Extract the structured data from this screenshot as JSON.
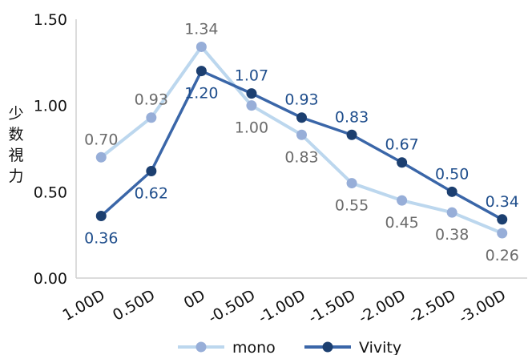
{
  "chart_data": {
    "type": "line",
    "categories": [
      "1.00D",
      "0.50D",
      "0D",
      "-0.50D",
      "-1.00D",
      "-1.50D",
      "-2.00D",
      "-2.50D",
      "-3.00D"
    ],
    "series": [
      {
        "name": "mono",
        "values": [
          0.7,
          0.93,
          1.34,
          1.0,
          0.83,
          0.55,
          0.45,
          0.38,
          0.26
        ],
        "labels": [
          "0.70",
          "0.93",
          "1.34",
          "1.00",
          "0.83",
          "0.55",
          "0.45",
          "0.38",
          "0.26"
        ],
        "line_color": "#bcd7ee",
        "marker_color": "#97aed8",
        "label_color": "#6b6b6b"
      },
      {
        "name": "Vivity",
        "values": [
          0.36,
          0.62,
          1.2,
          1.07,
          0.93,
          0.83,
          0.67,
          0.5,
          0.34
        ],
        "labels": [
          "0.36",
          "0.62",
          "1.20",
          "1.07",
          "0.93",
          "0.83",
          "0.67",
          "0.50",
          "0.34"
        ],
        "line_color": "#3a66a8",
        "marker_color": "#1c3f70",
        "label_color": "#1f4e8c"
      }
    ],
    "ylabel": "少数視力",
    "xlabel": "",
    "ylim": [
      0,
      1.5
    ],
    "yticks": [
      "0.00",
      "0.50",
      "1.00",
      "1.50"
    ],
    "grid": false,
    "legend": "bottom"
  }
}
